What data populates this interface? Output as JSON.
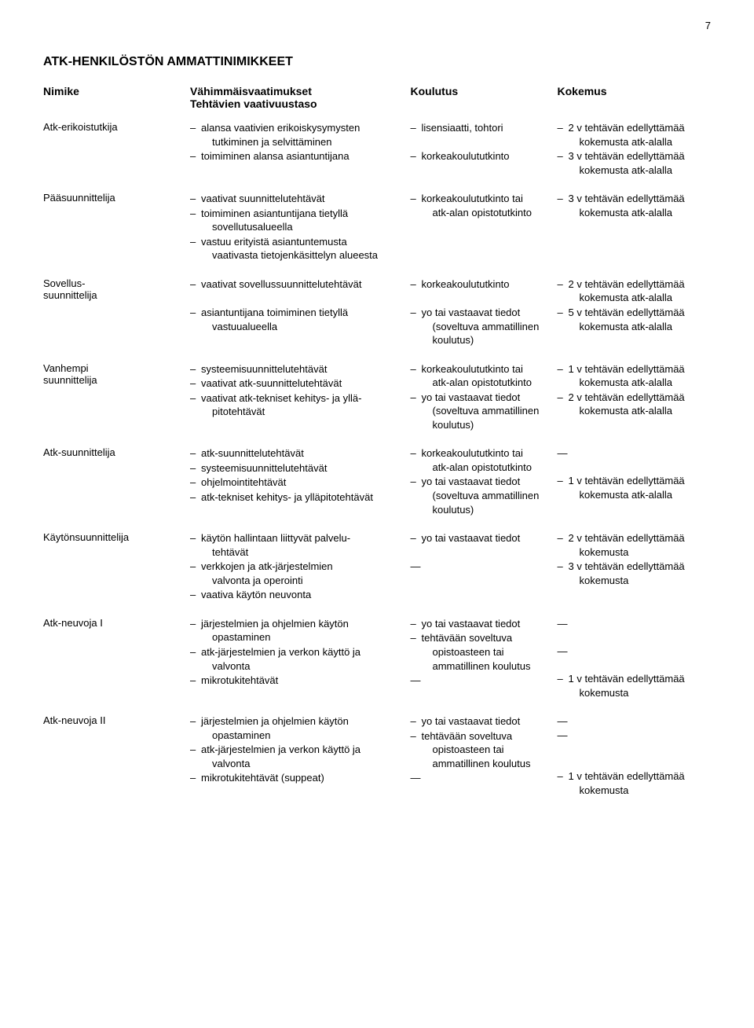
{
  "page_number": "7",
  "title": "ATK-HENKILÖSTÖN AMMATTINIMIKKEET",
  "headers": {
    "col1_line1": "Nimike",
    "col2_line1": "Vähimmäisvaatimukset",
    "col2_line2": "Tehtävien vaativuustaso",
    "col3": "Koulutus",
    "col4": "Kokemus"
  },
  "rows": [
    {
      "nimike": "Atk-erikoistutkija",
      "col2": [
        {
          "text": "alansa vaativien erikoiskysymysten",
          "sub": "tutkiminen ja selvittäminen"
        },
        {
          "text": "toimiminen alansa asiantuntijana"
        }
      ],
      "col3": [
        {
          "text": "lisensiaatti, tohtori"
        },
        {
          "blank": true
        },
        {
          "text": "korkeakoulututkinto"
        }
      ],
      "col4": [
        {
          "text": "2 v tehtävän edellyttämää",
          "sub": "kokemusta atk-alalla"
        },
        {
          "text": "3 v tehtävän edellyttämää",
          "sub": "kokemusta atk-alalla"
        }
      ]
    },
    {
      "nimike": "Pääsuunnittelija",
      "col2": [
        {
          "text": "vaativat suunnittelutehtävät"
        },
        {
          "text": "toimiminen asiantuntijana tietyllä",
          "sub": "sovellutusalueella"
        },
        {
          "text": "vastuu erityistä asiantuntemusta",
          "sub": "vaativasta tietojenkäsittelyn alueesta"
        }
      ],
      "col3": [
        {
          "text": "korkeakoulututkinto tai",
          "sub": "atk-alan opistotutkinto"
        }
      ],
      "col4": [
        {
          "text": "3 v tehtävän edellyttämää",
          "sub": "kokemusta atk-alalla"
        }
      ]
    },
    {
      "nimike": "Sovellus-\nsuunnittelija",
      "col2": [
        {
          "text": "vaativat sovellussuunnittelutehtävät"
        },
        {
          "blank": true
        },
        {
          "text": "asiantuntijana toimiminen tietyllä",
          "sub": "vastuualueella"
        }
      ],
      "col3": [
        {
          "text": "korkeakoulututkinto"
        },
        {
          "blank": true
        },
        {
          "text": "yo tai vastaavat tiedot",
          "sub": "(soveltuva ammatillinen koulutus)"
        }
      ],
      "col4": [
        {
          "text": "2 v tehtävän edellyttämää",
          "sub": "kokemusta atk-alalla"
        },
        {
          "text": "5 v tehtävän edellyttämää",
          "sub": "kokemusta atk-alalla"
        }
      ]
    },
    {
      "nimike": "Vanhempi\nsuunnittelija",
      "col2": [
        {
          "text": "systeemisuunnittelutehtävät"
        },
        {
          "text": "vaativat atk-suunnittelutehtävät"
        },
        {
          "text": "vaativat atk-tekniset kehitys- ja yllä-",
          "sub": "pitotehtävät"
        }
      ],
      "col3": [
        {
          "text": "korkeakoulututkinto tai",
          "sub": "atk-alan opistotutkinto"
        },
        {
          "text": "yo tai vastaavat tiedot",
          "sub": "(soveltuva ammatillinen koulutus)"
        }
      ],
      "col4": [
        {
          "text": "1 v tehtävän edellyttämää",
          "sub": "kokemusta atk-alalla"
        },
        {
          "text": "2 v tehtävän edellyttämää",
          "sub": "kokemusta atk-alalla"
        }
      ]
    },
    {
      "nimike": "Atk-suunnittelija",
      "col2": [
        {
          "text": "atk-suunnittelutehtävät"
        },
        {
          "text": "systeemisuunnittelutehtävät"
        },
        {
          "text": "ohjelmointitehtävät"
        },
        {
          "text": "atk-tekniset kehitys- ja ylläpitotehtävät"
        }
      ],
      "col3": [
        {
          "text": "korkeakoulututkinto tai",
          "sub": "atk-alan opistotutkinto"
        },
        {
          "text": "yo tai vastaavat tiedot",
          "sub": "(soveltuva ammatillinen koulutus)"
        }
      ],
      "col4": [
        {
          "dash": true
        },
        {
          "blank": true
        },
        {
          "text": "1 v tehtävän edellyttämää",
          "sub": "kokemusta atk-alalla"
        }
      ]
    },
    {
      "nimike": "Käytönsuunnittelija",
      "col2": [
        {
          "text": "käytön hallintaan liittyvät palvelu-",
          "sub": "tehtävät"
        },
        {
          "text": "verkkojen ja atk-järjestelmien",
          "sub": "valvonta ja operointi"
        },
        {
          "text": "vaativa käytön neuvonta"
        }
      ],
      "col3": [
        {
          "text": "yo tai vastaavat tiedot"
        },
        {
          "blank": true
        },
        {
          "dash": true
        }
      ],
      "col4": [
        {
          "text": "2 v tehtävän edellyttämää",
          "sub": "kokemusta"
        },
        {
          "text": "3 v tehtävän edellyttämää",
          "sub": "kokemusta"
        }
      ]
    },
    {
      "nimike": "Atk-neuvoja I",
      "col2": [
        {
          "text": "järjestelmien ja ohjelmien käytön",
          "sub": "opastaminen"
        },
        {
          "text": "atk-järjestelmien ja verkon käyttö ja",
          "sub": "valvonta"
        },
        {
          "text": "mikrotukitehtävät"
        }
      ],
      "col3": [
        {
          "text": "yo tai vastaavat tiedot"
        },
        {
          "text": "tehtävään soveltuva",
          "sub": "opistoasteen tai ammatillinen koulutus"
        },
        {
          "dash": true
        }
      ],
      "col4": [
        {
          "dash": true
        },
        {
          "blank": true
        },
        {
          "dash": true
        },
        {
          "blank": true
        },
        {
          "text": "1 v tehtävän edellyttämää",
          "sub": "kokemusta"
        }
      ]
    },
    {
      "nimike": "Atk-neuvoja II",
      "col2": [
        {
          "text": "järjestelmien ja ohjelmien käytön",
          "sub": "opastaminen"
        },
        {
          "text": "atk-järjestelmien ja verkon käyttö ja",
          "sub": "valvonta"
        },
        {
          "text": "mikrotukitehtävät (suppeat)"
        }
      ],
      "col3": [
        {
          "text": "yo tai vastaavat tiedot"
        },
        {
          "text": "tehtävään soveltuva",
          "sub": "opistoasteen tai ammatillinen koulutus"
        },
        {
          "dash": true
        }
      ],
      "col4": [
        {
          "dash": true
        },
        {
          "dash": true
        },
        {
          "blank": true
        },
        {
          "blank": true
        },
        {
          "text": "1 v tehtävän edellyttämää",
          "sub": "kokemusta"
        }
      ]
    }
  ]
}
